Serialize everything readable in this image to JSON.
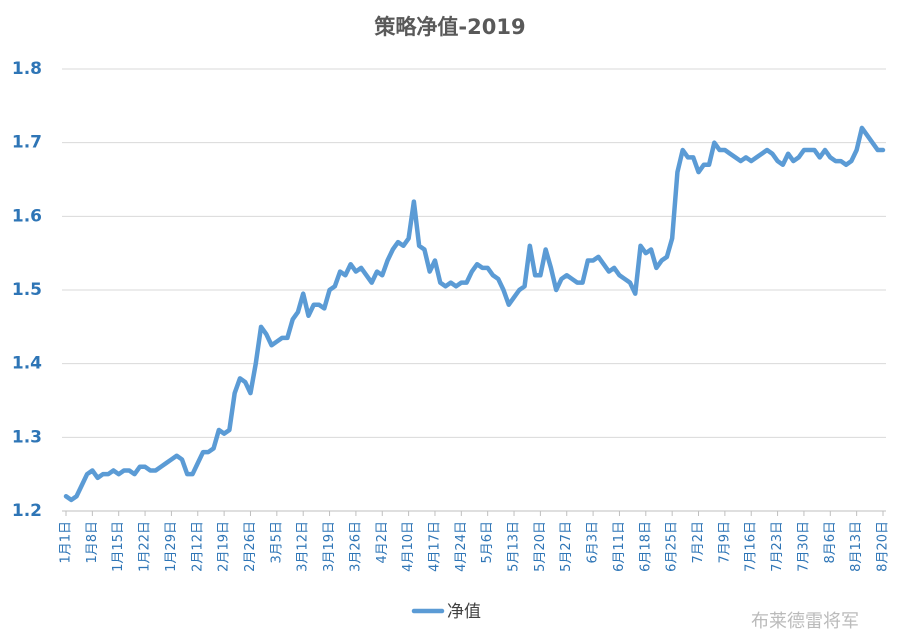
{
  "chart_data": {
    "type": "line",
    "title": "策略净值-2019",
    "categories": [
      "1月1日",
      null,
      null,
      null,
      null,
      "1月8日",
      null,
      null,
      null,
      null,
      "1月15日",
      null,
      null,
      null,
      null,
      "1月22日",
      null,
      null,
      null,
      null,
      "1月29日",
      null,
      null,
      null,
      null,
      "2月12日",
      null,
      null,
      null,
      null,
      "2月19日",
      null,
      null,
      null,
      null,
      "2月26日",
      null,
      null,
      null,
      null,
      "3月5日",
      null,
      null,
      null,
      null,
      "3月12日",
      null,
      null,
      null,
      null,
      "3月19日",
      null,
      null,
      null,
      null,
      "3月26日",
      null,
      null,
      null,
      null,
      "4月2日",
      null,
      null,
      null,
      null,
      "4月10日",
      null,
      null,
      null,
      null,
      "4月17日",
      null,
      null,
      null,
      null,
      "4月24日",
      null,
      null,
      null,
      null,
      "5月6日",
      null,
      null,
      null,
      null,
      "5月13日",
      null,
      null,
      null,
      null,
      "5月20日",
      null,
      null,
      null,
      null,
      "5月27日",
      null,
      null,
      null,
      null,
      "6月3日",
      null,
      null,
      null,
      null,
      "6月11日",
      null,
      null,
      null,
      null,
      "6月18日",
      null,
      null,
      null,
      null,
      "6月25日",
      null,
      null,
      null,
      null,
      "7月2日",
      null,
      null,
      null,
      null,
      "7月9日",
      null,
      null,
      null,
      null,
      "7月16日",
      null,
      null,
      null,
      null,
      "7月23日",
      null,
      null,
      null,
      null,
      "7月30日",
      null,
      null,
      null,
      null,
      "8月6日",
      null,
      null,
      null,
      null,
      "8月13日",
      null,
      null,
      null,
      null,
      "8月20日"
    ],
    "series": [
      {
        "name": "净值",
        "color": "#5b9bd5",
        "values": [
          1.22,
          1.215,
          1.22,
          1.235,
          1.25,
          1.255,
          1.245,
          1.25,
          1.25,
          1.255,
          1.25,
          1.255,
          1.255,
          1.25,
          1.26,
          1.26,
          1.255,
          1.255,
          1.26,
          1.265,
          1.27,
          1.275,
          1.27,
          1.25,
          1.25,
          1.265,
          1.28,
          1.28,
          1.285,
          1.31,
          1.305,
          1.31,
          1.36,
          1.38,
          1.375,
          1.36,
          1.4,
          1.45,
          1.44,
          1.425,
          1.43,
          1.435,
          1.435,
          1.46,
          1.47,
          1.495,
          1.465,
          1.48,
          1.48,
          1.475,
          1.5,
          1.505,
          1.525,
          1.52,
          1.535,
          1.525,
          1.53,
          1.52,
          1.51,
          1.525,
          1.52,
          1.54,
          1.555,
          1.565,
          1.56,
          1.57,
          1.62,
          1.56,
          1.555,
          1.525,
          1.54,
          1.51,
          1.505,
          1.51,
          1.505,
          1.51,
          1.51,
          1.525,
          1.535,
          1.53,
          1.53,
          1.52,
          1.515,
          1.5,
          1.48,
          1.49,
          1.5,
          1.505,
          1.56,
          1.52,
          1.52,
          1.555,
          1.53,
          1.5,
          1.515,
          1.52,
          1.515,
          1.51,
          1.51,
          1.54,
          1.54,
          1.545,
          1.535,
          1.525,
          1.53,
          1.52,
          1.515,
          1.51,
          1.495,
          1.56,
          1.55,
          1.555,
          1.53,
          1.54,
          1.545,
          1.57,
          1.66,
          1.69,
          1.68,
          1.68,
          1.66,
          1.67,
          1.67,
          1.7,
          1.69,
          1.69,
          1.685,
          1.68,
          1.675,
          1.68,
          1.675,
          1.68,
          1.685,
          1.69,
          1.685,
          1.675,
          1.67,
          1.685,
          1.675,
          1.68,
          1.69,
          1.69,
          1.69,
          1.68,
          1.69,
          1.68,
          1.675,
          1.675,
          1.67,
          1.675,
          1.69,
          1.72,
          1.71,
          1.7,
          1.69,
          1.69
        ]
      }
    ],
    "ylim": [
      1.2,
      1.8
    ],
    "yticks": [
      1.2,
      1.3,
      1.4,
      1.5,
      1.6,
      1.7,
      1.8
    ],
    "grid": true,
    "legend": "bottom",
    "watermark": "布莱德雷将军"
  }
}
